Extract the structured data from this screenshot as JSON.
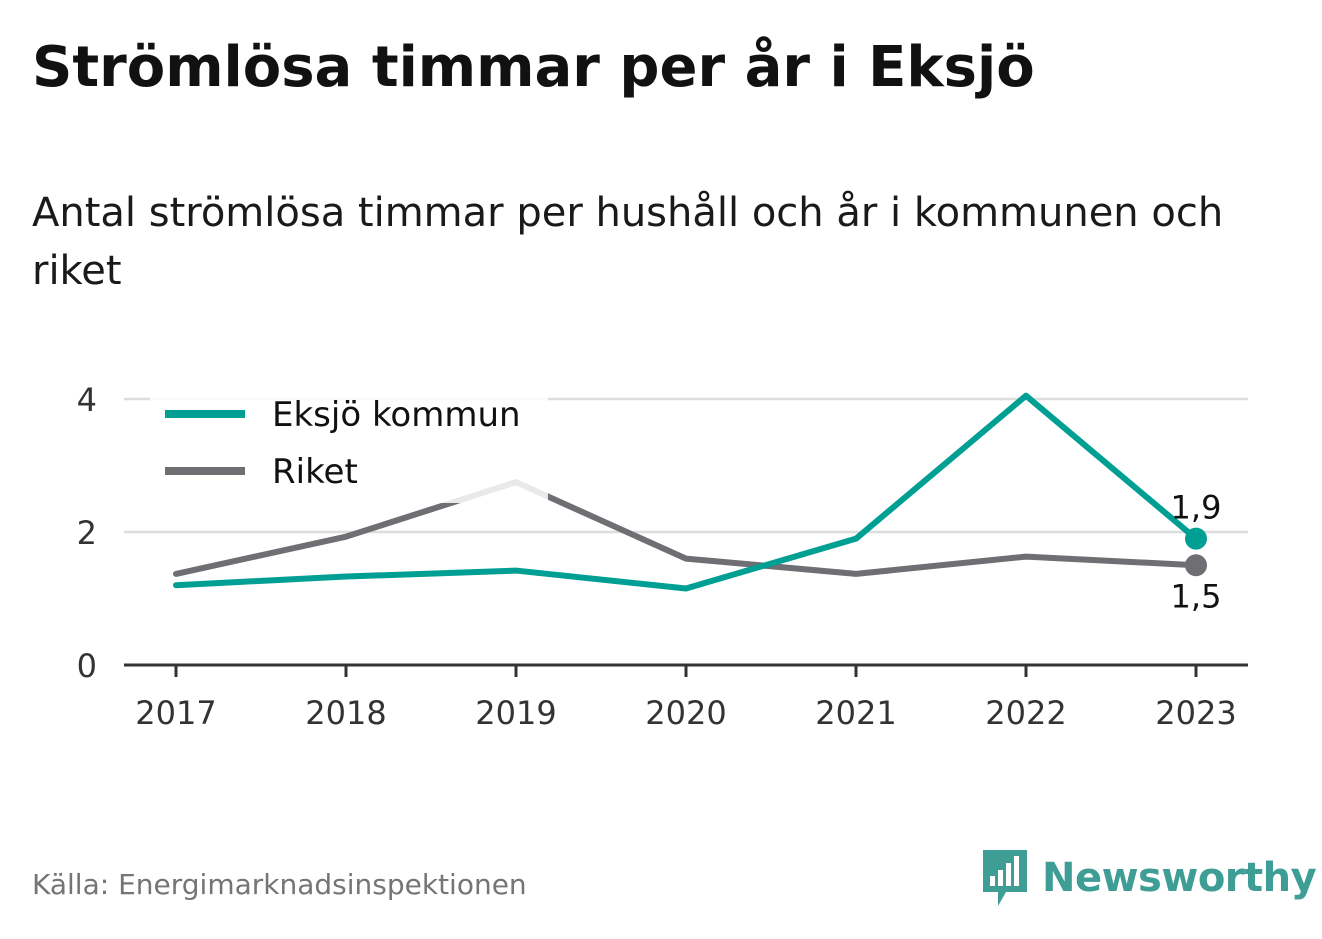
{
  "title": "Strömlösa timmar per år i Eksjö",
  "subtitle": "Antal strömlösa timmar per hushåll och år i kommunen och riket",
  "source": "Källa: Energimarknadsinspektionen",
  "brand": {
    "name": "Newsworthy",
    "color": "#3e9d94",
    "icon": "newsworthy-logo-icon"
  },
  "chart_data": {
    "type": "line",
    "x": [
      "2017",
      "2018",
      "2019",
      "2020",
      "2021",
      "2022",
      "2023"
    ],
    "ylim": [
      0,
      4
    ],
    "yticks": [
      "0",
      "2",
      "4"
    ],
    "grid": true,
    "legend_position": "top-left",
    "series": [
      {
        "name": "Eksjö kommun",
        "color": "#009f93",
        "values": [
          1.2,
          1.33,
          1.42,
          1.15,
          1.9,
          4.05,
          1.9
        ],
        "end_label": "1,9"
      },
      {
        "name": "Riket",
        "color": "#6e6e73",
        "values": [
          1.37,
          1.93,
          2.75,
          1.6,
          1.37,
          1.63,
          1.5
        ],
        "end_label": "1,5"
      }
    ]
  }
}
